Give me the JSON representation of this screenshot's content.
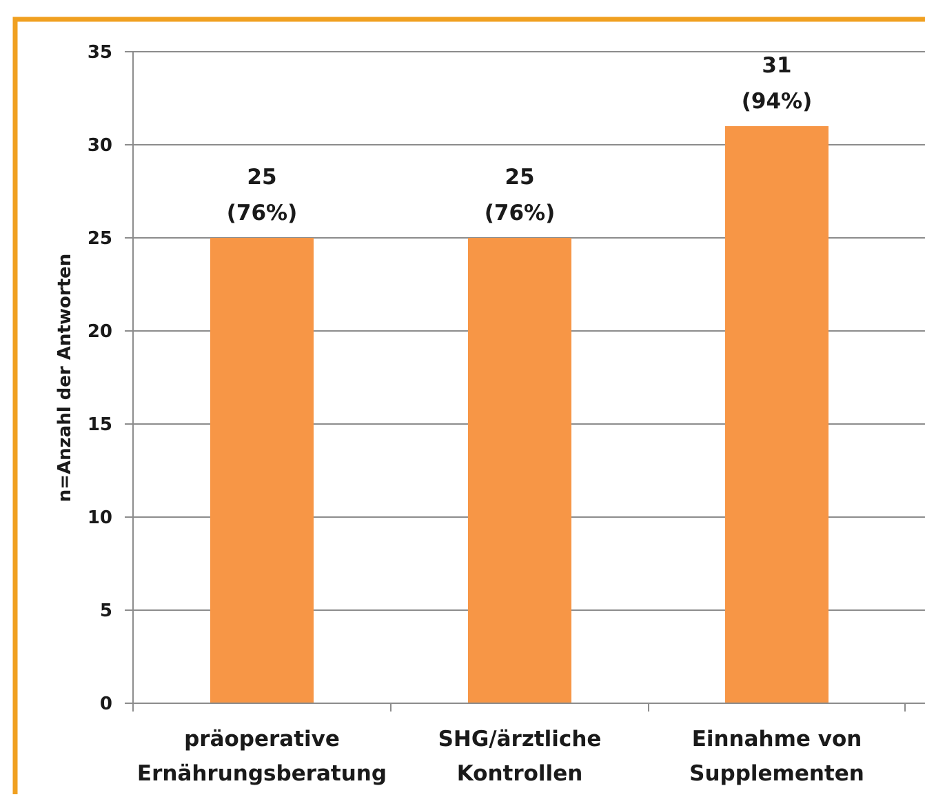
{
  "frame_color": "#f0a020",
  "chart_data": {
    "type": "bar",
    "title": "",
    "xlabel": "",
    "ylabel": "n=Anzahl der Antworten",
    "ylim": [
      0,
      35
    ],
    "yticks": [
      0,
      5,
      10,
      15,
      20,
      25,
      30,
      35
    ],
    "grid": true,
    "bar_color": "#f79646",
    "categories": [
      [
        "präoperative",
        "Ernährungsberatung"
      ],
      [
        "SHG/ärztliche",
        "Kontrollen"
      ],
      [
        "Einnahme von",
        "Supplementen"
      ]
    ],
    "values": [
      25,
      25,
      31
    ],
    "percent_labels": [
      "(76%)",
      "(76%)",
      "(94%)"
    ]
  }
}
